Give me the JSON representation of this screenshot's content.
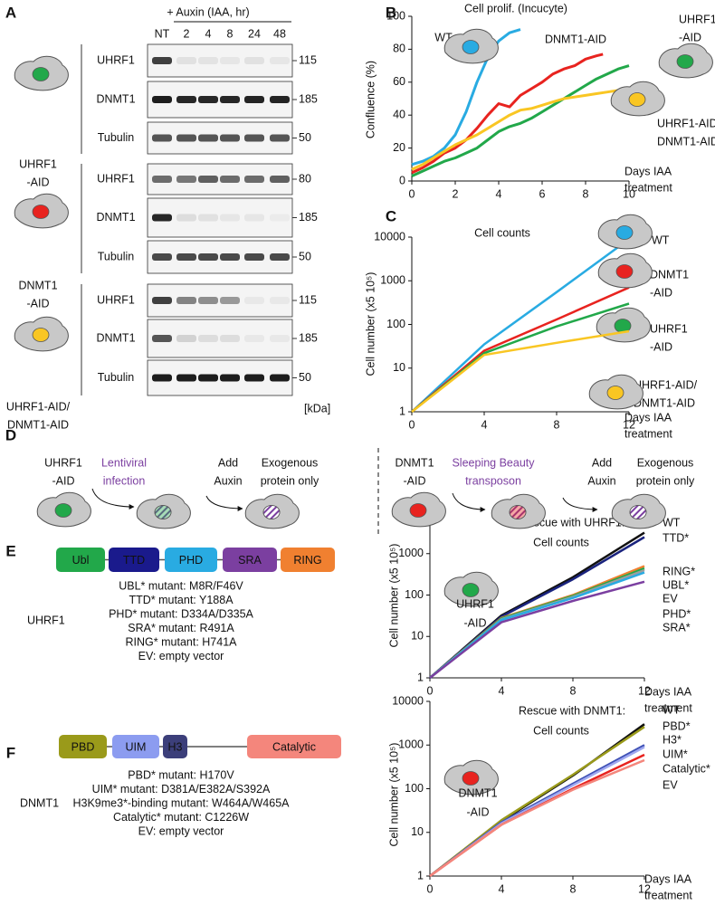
{
  "panel_labels": [
    "A",
    "B",
    "C",
    "D",
    "E",
    "F"
  ],
  "blot": {
    "treatment": "+ Auxin (IAA, hr)",
    "lanes": [
      "NT",
      "2",
      "4",
      "8",
      "24",
      "48"
    ],
    "unit": "[kDa]",
    "groups": [
      {
        "cell": [
          "UHRF1",
          "-AID"
        ],
        "rows": [
          {
            "protein": "UHRF1",
            "size": 115
          },
          {
            "protein": "DNMT1",
            "size": 185
          },
          {
            "protein": "Tubulin",
            "size": 50
          }
        ]
      },
      {
        "cell": [
          "DNMT1",
          "-AID"
        ],
        "rows": [
          {
            "protein": "UHRF1",
            "size": 80
          },
          {
            "protein": "DNMT1",
            "size": 185
          },
          {
            "protein": "Tubulin",
            "size": 50
          }
        ]
      },
      {
        "cell": [
          "UHRF1-AID/",
          "DNMT1-AID"
        ],
        "rows": [
          {
            "protein": "UHRF1",
            "size": 115
          },
          {
            "protein": "DNMT1",
            "size": 185
          },
          {
            "protein": "Tubulin",
            "size": 50
          }
        ]
      }
    ]
  },
  "chart_data": [
    {
      "type": "line",
      "title": "Cell prolif. (Incucyte)",
      "ylabel": "Confluence (%)",
      "xlabel": [
        "Days IAA",
        "treatment"
      ],
      "xlim": [
        0,
        10
      ],
      "xticks": [
        0,
        2,
        4,
        6,
        8,
        10
      ],
      "ylim": [
        0,
        100
      ],
      "yticks": [
        0,
        20,
        40,
        60,
        80,
        100
      ],
      "log": false,
      "series": [
        {
          "name": [
            "WT"
          ],
          "color": "#29abe2",
          "x": [
            0,
            0.5,
            1,
            1.5,
            2,
            2.5,
            3,
            3.5,
            4,
            4.5,
            5
          ],
          "values": [
            10,
            12,
            15,
            20,
            28,
            42,
            60,
            75,
            85,
            90,
            92
          ]
        },
        {
          "name": [
            "DNMT1-AID"
          ],
          "color": "#e8231f",
          "x": [
            0,
            0.5,
            1,
            1.5,
            2,
            2.5,
            3,
            3.5,
            4,
            4.5,
            5,
            5.5,
            6,
            6.5,
            7,
            7.5,
            8,
            8.5,
            8.8
          ],
          "values": [
            5,
            8,
            12,
            17,
            20,
            25,
            32,
            40,
            47,
            45,
            52,
            56,
            60,
            65,
            68,
            70,
            74,
            76,
            77
          ]
        },
        {
          "name": [
            "UHRF1",
            "-AID"
          ],
          "color": "#22a84a",
          "x": [
            0,
            0.5,
            1,
            1.5,
            2,
            2.5,
            3,
            3.5,
            4,
            4.5,
            5,
            5.5,
            6,
            6.5,
            7,
            7.5,
            8,
            8.5,
            9,
            9.5,
            10
          ],
          "values": [
            3,
            6,
            9,
            12,
            14,
            17,
            20,
            25,
            30,
            33,
            35,
            38,
            42,
            46,
            50,
            54,
            58,
            62,
            65,
            68,
            70
          ]
        },
        {
          "name": [
            "UHRF1-AID/",
            "DNMT1-AID"
          ],
          "color": "#f9c623",
          "x": [
            0,
            0.5,
            1,
            1.5,
            2,
            2.5,
            3,
            3.5,
            4,
            4.5,
            5,
            5.5,
            6,
            6.5,
            7,
            7.5,
            8,
            8.5,
            9,
            9.5,
            10
          ],
          "values": [
            7,
            10,
            14,
            18,
            22,
            25,
            28,
            32,
            36,
            40,
            43,
            44,
            46,
            48,
            50,
            51,
            52,
            53,
            54,
            55,
            55
          ]
        }
      ]
    },
    {
      "type": "line",
      "title": "Cell counts",
      "ylabel": "Cell number (x5 10⁵)",
      "xlabel": [
        "Days IAA",
        "treatment"
      ],
      "x": [
        0,
        4,
        8,
        12
      ],
      "xlim": [
        0,
        12
      ],
      "xticks": [
        0,
        4,
        8,
        12
      ],
      "ylim": [
        1,
        10000
      ],
      "yticks": [
        1,
        10,
        100,
        1000,
        10000
      ],
      "log": true,
      "series": [
        {
          "name": [
            "WT"
          ],
          "color": "#29abe2",
          "values": [
            1,
            35,
            550,
            9000
          ]
        },
        {
          "name": [
            "DNMT1",
            "-AID"
          ],
          "color": "#e8231f",
          "values": [
            1,
            25,
            130,
            700
          ]
        },
        {
          "name": [
            "UHRF1",
            "-AID"
          ],
          "color": "#22a84a",
          "values": [
            1,
            22,
            90,
            300
          ]
        },
        {
          "name": [
            "UHRF1-AID/",
            "DNMT1-AID"
          ],
          "color": "#f9c623",
          "values": [
            1,
            20,
            38,
            70
          ]
        }
      ]
    },
    {
      "type": "line",
      "title": [
        "Rescue with UHRF1:",
        "Cell counts"
      ],
      "annotation": [
        "UHRF1",
        "-AID"
      ],
      "ylabel": "Cell number (x5 10⁵)",
      "xlabel": [
        "Days IAA",
        "treatment"
      ],
      "x": [
        0,
        4,
        8,
        12
      ],
      "xlim": [
        0,
        12
      ],
      "xticks": [
        0,
        4,
        8,
        12
      ],
      "ylim": [
        1,
        10000
      ],
      "yticks": [
        1,
        10,
        100,
        1000,
        10000
      ],
      "log": true,
      "series": [
        {
          "name": [
            "WT"
          ],
          "color": "#111111",
          "values": [
            1,
            32,
            270,
            3200
          ]
        },
        {
          "name": [
            "TTD*"
          ],
          "color": "#1a237e",
          "values": [
            1,
            30,
            240,
            2500
          ]
        },
        {
          "name": [
            "RING*"
          ],
          "color": "#f08030",
          "values": [
            1,
            28,
            100,
            500
          ]
        },
        {
          "name": [
            "UBL*"
          ],
          "color": "#22a84a",
          "values": [
            1,
            27,
            95,
            440
          ]
        },
        {
          "name": [
            "EV"
          ],
          "color": "#9e9e9e",
          "values": [
            1,
            26,
            90,
            400
          ]
        },
        {
          "name": [
            "PHD*"
          ],
          "color": "#29abe2",
          "values": [
            1,
            25,
            85,
            350
          ]
        },
        {
          "name": [
            "SRA*"
          ],
          "color": "#7b3fa0",
          "values": [
            1,
            22,
            72,
            210
          ]
        }
      ]
    },
    {
      "type": "line",
      "title": [
        "Rescue with DNMT1:",
        "Cell counts"
      ],
      "annotation": [
        "DNMT1",
        "-AID"
      ],
      "ylabel": "Cell number (x5 10⁵)",
      "xlabel": [
        "Days IAA",
        "treatment"
      ],
      "x": [
        0,
        4,
        8,
        12
      ],
      "xlim": [
        0,
        12
      ],
      "xticks": [
        0,
        4,
        8,
        12
      ],
      "ylim": [
        1,
        10000
      ],
      "yticks": [
        1,
        10,
        100,
        1000,
        10000
      ],
      "log": true,
      "series": [
        {
          "name": [
            "WT"
          ],
          "color": "#111111",
          "values": [
            1,
            18,
            200,
            3000
          ]
        },
        {
          "name": [
            "PBD*"
          ],
          "color": "#9a9a1a",
          "values": [
            1,
            19,
            210,
            2600
          ]
        },
        {
          "name": [
            "H3*"
          ],
          "color": "#3f51b5",
          "values": [
            1,
            17,
            130,
            1000
          ]
        },
        {
          "name": [
            "UIM*"
          ],
          "color": "#9fa8f0",
          "values": [
            1,
            16,
            120,
            900
          ]
        },
        {
          "name": [
            "Catalytic*"
          ],
          "color": "#e8231f",
          "values": [
            1,
            15,
            100,
            600
          ]
        },
        {
          "name": [
            "EV"
          ],
          "color": "#f4867c",
          "values": [
            1,
            15,
            95,
            450
          ]
        }
      ]
    }
  ],
  "diagram": {
    "left": {
      "start": [
        "UHRF1",
        "-AID"
      ],
      "method": [
        "Lentiviral",
        "infection"
      ],
      "step": [
        "Add",
        "Auxin"
      ],
      "result": [
        "Exogenous",
        "protein only"
      ]
    },
    "right": {
      "start": [
        "DNMT1",
        "-AID"
      ],
      "method": [
        "Sleeping Beauty",
        "transposon"
      ],
      "step": [
        "Add",
        "Auxin"
      ],
      "result": [
        "Exogenous",
        "protein only"
      ]
    }
  },
  "constructs": [
    {
      "protein": "UHRF1",
      "domains": [
        {
          "label": "Ubl",
          "color": "#22a84a"
        },
        {
          "label": "TTD",
          "color": "#1a1a8c"
        },
        {
          "label": "PHD",
          "color": "#29abe2"
        },
        {
          "label": "SRA",
          "color": "#7b3fa0"
        },
        {
          "label": "RING",
          "color": "#f08030"
        }
      ],
      "notes": [
        "UBL* mutant: M8R/F46V",
        "TTD* mutant: Y188A",
        "PHD* mutant: D334A/D335A",
        "SRA* mutant: R491A",
        "RING* mutant: H741A",
        "EV: empty vector"
      ]
    },
    {
      "protein": "DNMT1",
      "domains": [
        {
          "label": "PBD",
          "color": "#9a9a1a"
        },
        {
          "label": "UIM",
          "color": "#8c9cf0"
        },
        {
          "label": "H3",
          "color": "#3c3f7a"
        },
        {
          "label": "Catalytic",
          "color": "#f4867c"
        }
      ],
      "notes": [
        "PBD* mutant: H170V",
        "UIM* mutant: D381A/E382A/S392A",
        "H3K9me3*-binding mutant: W464A/W465A",
        "Catalytic* mutant: C1226W",
        "EV: empty vector"
      ]
    }
  ]
}
